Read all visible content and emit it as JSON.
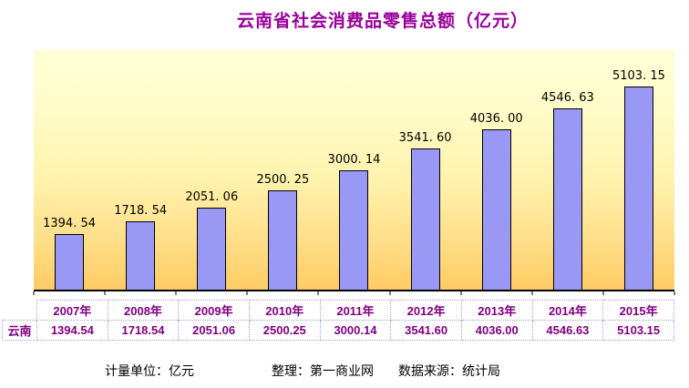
{
  "title": "云南省社会消费品零售总额（亿元）",
  "chart_data": {
    "type": "bar",
    "title": "云南省社会消费品零售总额（亿元）",
    "unit": "亿元",
    "series_name": "云南",
    "categories": [
      "2007年",
      "2008年",
      "2009年",
      "2010年",
      "2011年",
      "2012年",
      "2013年",
      "2014年",
      "2015年"
    ],
    "values": [
      1394.54,
      1718.54,
      2051.06,
      2500.25,
      3000.14,
      3541.6,
      4036.0,
      4546.63,
      5103.15
    ],
    "bar_labels": [
      "1394. 54",
      "1718. 54",
      "2051. 06",
      "2500. 25",
      "3000. 14",
      "3541. 60",
      "4036. 00",
      "4546. 63",
      "5103. 15"
    ],
    "ylim": [
      0,
      5400
    ],
    "grid": false,
    "legend": "none",
    "colors": {
      "bar_fill": "#9999F5",
      "bar_border": "#000000",
      "plot_bg_top": "#FFFFD8",
      "plot_bg_bottom": "#FFCB63",
      "axis": "#000000",
      "value_label": "#000000"
    }
  },
  "table": {
    "row_label": "云南",
    "columns": [
      "2007年",
      "2008年",
      "2009年",
      "2010年",
      "2011年",
      "2012年",
      "2013年",
      "2014年",
      "2015年"
    ],
    "values": [
      "1394.54",
      "1718.54",
      "2051.06",
      "2500.25",
      "3000.14",
      "3541.60",
      "4036.00",
      "4546.63",
      "5103.15"
    ],
    "text_color": "#800080",
    "border_color": "#9F9FDF"
  },
  "footer": {
    "unit_label": "计量单位：亿元",
    "editor_label": "整理：第一商业网",
    "source_label": "数据来源：统计局"
  },
  "colors": {
    "title": "#990099"
  }
}
